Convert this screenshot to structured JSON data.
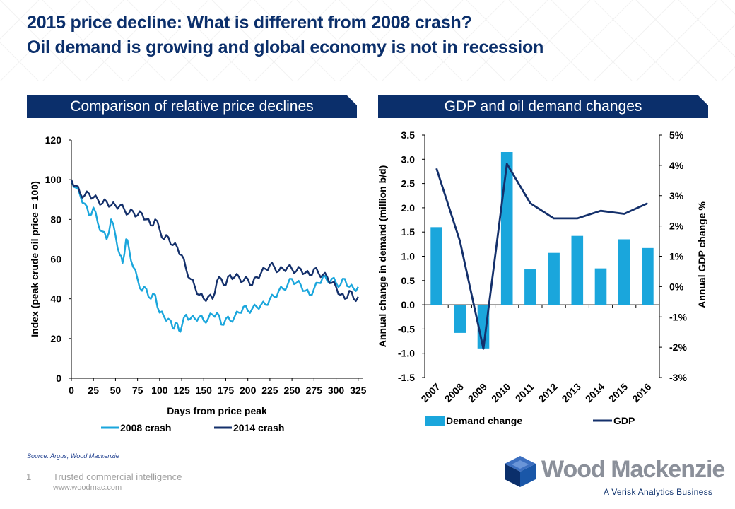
{
  "header": {
    "title_line1": "2015 price decline: What is different from 2008 crash?",
    "title_line2": "Oil demand is growing and global economy is not in recession"
  },
  "left_panel": {
    "banner": "Comparison of relative price declines"
  },
  "right_panel": {
    "banner": "GDP and oil demand changes"
  },
  "colors": {
    "navy": "#0b2f6b",
    "cyan": "#1aa6dc",
    "crash2014": "#14306b",
    "axis": "#000000"
  },
  "chart_data": [
    {
      "type": "line",
      "title": "Comparison of relative price declines",
      "xlabel": "Days from price peak",
      "ylabel": "Index (peak crude oil price = 100)",
      "xlim": [
        0,
        330
      ],
      "ylim": [
        0,
        120
      ],
      "x_ticks": [
        0,
        25,
        50,
        75,
        100,
        125,
        150,
        175,
        200,
        225,
        250,
        275,
        300,
        325
      ],
      "y_ticks": [
        0,
        20,
        40,
        60,
        80,
        100,
        120
      ],
      "legend_position": "bottom",
      "series": [
        {
          "name": "2008 crash",
          "color": "#1aa6dc",
          "x": [
            0,
            5,
            10,
            15,
            20,
            25,
            30,
            35,
            40,
            45,
            50,
            55,
            58,
            62,
            65,
            70,
            75,
            80,
            85,
            90,
            95,
            100,
            105,
            110,
            115,
            118,
            122,
            125,
            130,
            135,
            140,
            145,
            150,
            155,
            160,
            165,
            170,
            175,
            180,
            185,
            190,
            195,
            200,
            205,
            210,
            215,
            220,
            225,
            230,
            235,
            240,
            245,
            250,
            255,
            260,
            265,
            270,
            275,
            280,
            285,
            290,
            295,
            300,
            305,
            310,
            315,
            320,
            325
          ],
          "y": [
            100,
            96,
            92,
            88,
            82,
            86,
            78,
            74,
            70,
            80,
            72,
            62,
            58,
            70,
            66,
            56,
            50,
            44,
            45,
            40,
            42,
            33,
            31,
            30,
            25,
            28,
            24,
            26,
            32,
            30,
            30,
            31,
            29,
            30,
            32,
            33,
            27,
            30,
            29,
            31,
            33,
            36,
            34,
            35,
            36,
            37,
            37,
            40,
            41,
            44,
            45,
            47,
            50,
            48,
            47,
            44,
            42,
            45,
            48,
            51,
            49,
            50,
            48,
            47,
            50,
            46,
            45,
            46
          ]
        },
        {
          "name": "2014 crash",
          "color": "#14306b",
          "x": [
            0,
            5,
            10,
            15,
            20,
            25,
            30,
            35,
            40,
            45,
            50,
            55,
            60,
            65,
            70,
            75,
            80,
            85,
            90,
            95,
            100,
            105,
            110,
            115,
            120,
            125,
            130,
            135,
            140,
            145,
            150,
            155,
            160,
            165,
            170,
            175,
            180,
            185,
            190,
            195,
            200,
            205,
            210,
            215,
            220,
            225,
            230,
            235,
            240,
            245,
            250,
            255,
            260,
            265,
            270,
            275,
            280,
            285,
            290,
            295,
            300,
            305,
            310,
            315,
            320,
            325
          ],
          "y": [
            100,
            97,
            93,
            92,
            93,
            91,
            90,
            88,
            89,
            87,
            87,
            87,
            85,
            83,
            84,
            82,
            83,
            80,
            77,
            80,
            75,
            70,
            71,
            67,
            66,
            62,
            55,
            50,
            46,
            42,
            40,
            41,
            40,
            49,
            50,
            47,
            52,
            51,
            51,
            49,
            50,
            47,
            51,
            53,
            55,
            57,
            56,
            54,
            55,
            56,
            55,
            54,
            55,
            53,
            52,
            55,
            53,
            52,
            51,
            48,
            46,
            42,
            40,
            44,
            40,
            41
          ]
        }
      ]
    },
    {
      "type": "bar",
      "title": "GDP and oil demand changes",
      "categories": [
        "2007",
        "2008",
        "2009",
        "2010",
        "2011",
        "2012",
        "2013",
        "2014",
        "2015",
        "2016"
      ],
      "ylabel": "Annual change in demand (million b/d)",
      "y2label": "Annual GDP change %",
      "ylim": [
        -1.5,
        3.5
      ],
      "y_ticks": [
        "3.5",
        "3.0",
        "2.5",
        "2.0",
        "1.5",
        "1.0",
        "0.5",
        "0.0",
        "-0.5",
        "-1.0",
        "-1.5"
      ],
      "y2lim": [
        -3,
        5
      ],
      "y2_ticks": [
        "5%",
        "4%",
        "3%",
        "2%",
        "1%",
        "0%",
        "-1%",
        "-2%",
        "-3%"
      ],
      "legend_position": "bottom",
      "series": [
        {
          "name": "Demand change",
          "type": "bar",
          "axis": "left",
          "color": "#1aa6dc",
          "values": [
            1.6,
            -0.58,
            -0.9,
            3.15,
            0.73,
            1.07,
            1.42,
            0.75,
            1.35,
            1.17
          ]
        },
        {
          "name": "GDP",
          "type": "line",
          "axis": "right",
          "color": "#14306b",
          "values": [
            3.9,
            1.5,
            -2.05,
            4.05,
            2.75,
            2.25,
            2.25,
            2.5,
            2.4,
            2.75
          ]
        }
      ]
    }
  ],
  "footer": {
    "source": "Source: Argus, Wood Mackenzie",
    "page_number": "1",
    "tagline": "Trusted commercial intelligence",
    "url": "www.woodmac.com",
    "logo_text": "Wood Mackenzie",
    "logo_subtext": "A Verisk Analytics Business"
  }
}
